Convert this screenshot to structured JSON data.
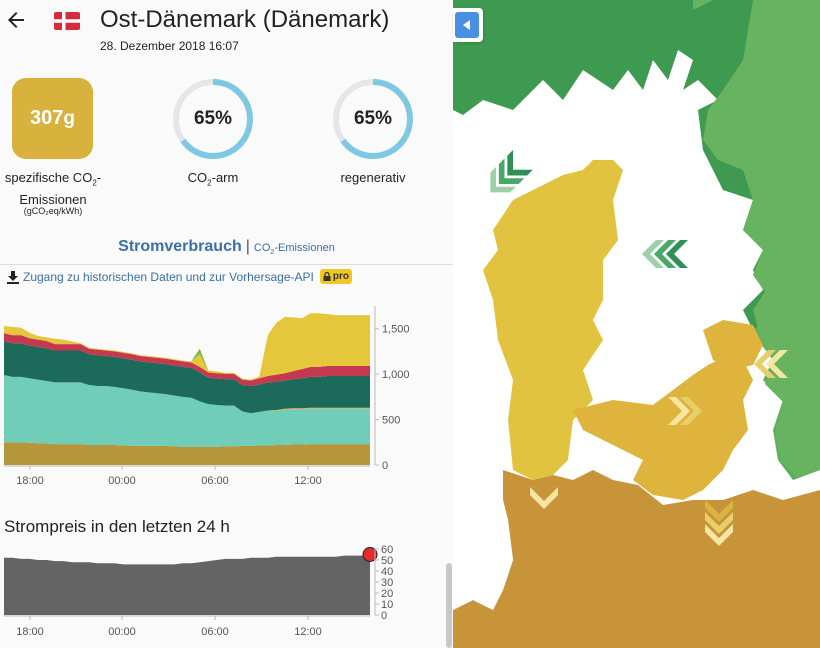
{
  "header": {
    "zone_title": "Ost-Dänemark (Dänemark)",
    "datetime": "28. Dezember 2018 16:07",
    "back_icon": "arrow-left-icon",
    "flag_icon": "denmark-flag-icon"
  },
  "metrics": {
    "co2_intensity": {
      "value": "307",
      "unit": "g",
      "label_line1": "spezifische CO",
      "label_sub": "2",
      "label_line1_end": "-",
      "label_line2": "Emissionen",
      "unit_note": "(gCO₂eq/kWh)",
      "color": "#d8b23c"
    },
    "low_carbon": {
      "value": "65%",
      "percent": 65,
      "label_main": "CO",
      "label_sub": "2",
      "label_end": "-arm",
      "color": "#7ec8e3"
    },
    "renewable": {
      "value": "65%",
      "percent": 65,
      "label": "regenerativ",
      "color": "#7ec8e3"
    }
  },
  "tabs": {
    "active": "Stromverbrauch",
    "separator": "|",
    "inactive_main": "CO",
    "inactive_sub": "2",
    "inactive_end": "-Emissionen"
  },
  "api_link": {
    "icon": "download-icon",
    "text": "Zugang zu historischen Daten und zur Vorhersage-API",
    "badge_icon": "lock-icon",
    "badge": "pro"
  },
  "chart_data": [
    {
      "type": "area",
      "title": "",
      "x_ticks": [
        "18:00",
        "00:00",
        "06:00",
        "12:00"
      ],
      "y_ticks": [
        "0",
        "500",
        "1,000",
        "1,500"
      ],
      "ylim": [
        0,
        1750
      ],
      "stacked": true,
      "series": [
        {
          "color": "#b5973b",
          "values": [
            250,
            250,
            250,
            245,
            240,
            235,
            230,
            230,
            230,
            230,
            220,
            220,
            220,
            220,
            215,
            210,
            210,
            210,
            210,
            210,
            205,
            200,
            200,
            200,
            200,
            200,
            205,
            205,
            210,
            210,
            215,
            215,
            220,
            220,
            225,
            225,
            230,
            230,
            230,
            230,
            230,
            230,
            230,
            230
          ]
        },
        {
          "color": "#6fcdb8",
          "values": [
            740,
            720,
            720,
            710,
            700,
            690,
            680,
            680,
            680,
            680,
            660,
            650,
            650,
            640,
            630,
            620,
            600,
            590,
            580,
            570,
            560,
            550,
            540,
            500,
            470,
            460,
            450,
            450,
            380,
            360,
            370,
            380,
            380,
            390,
            390,
            390,
            390,
            390,
            390,
            390,
            390,
            390,
            390,
            390
          ]
        },
        {
          "color": "#f4a340",
          "values": [
            0,
            0,
            0,
            0,
            0,
            0,
            0,
            0,
            0,
            0,
            0,
            0,
            0,
            0,
            0,
            0,
            0,
            0,
            0,
            0,
            0,
            0,
            0,
            0,
            0,
            0,
            0,
            0,
            0,
            0,
            0,
            5,
            5,
            10,
            10,
            10,
            10,
            10,
            10,
            10,
            10,
            10,
            10,
            10
          ]
        },
        {
          "color": "#1c6b5a",
          "values": [
            370,
            370,
            370,
            360,
            360,
            360,
            350,
            350,
            350,
            350,
            340,
            340,
            330,
            330,
            330,
            330,
            330,
            330,
            330,
            330,
            330,
            330,
            330,
            320,
            290,
            290,
            290,
            290,
            290,
            300,
            300,
            310,
            310,
            310,
            320,
            330,
            340,
            340,
            350,
            350,
            350,
            350,
            350,
            350
          ]
        },
        {
          "color": "#c53850",
          "values": [
            90,
            90,
            90,
            80,
            80,
            80,
            70,
            70,
            70,
            70,
            60,
            60,
            60,
            60,
            60,
            60,
            60,
            60,
            60,
            60,
            60,
            60,
            60,
            60,
            60,
            60,
            60,
            60,
            60,
            60,
            70,
            70,
            80,
            80,
            90,
            100,
            110,
            110,
            110,
            110,
            110,
            110,
            110,
            110
          ]
        },
        {
          "color": "#e4c73a",
          "values": [
            80,
            90,
            80,
            60,
            40,
            40,
            60,
            50,
            30,
            10,
            10,
            10,
            10,
            10,
            10,
            10,
            10,
            10,
            10,
            10,
            10,
            10,
            10,
            140,
            20,
            20,
            10,
            10,
            10,
            10,
            20,
            450,
            570,
            620,
            590,
            560,
            590,
            590,
            570,
            560,
            560,
            560,
            560,
            560
          ]
        },
        {
          "color": "#7ab648",
          "values": [
            0,
            0,
            0,
            0,
            0,
            0,
            0,
            0,
            0,
            0,
            0,
            0,
            0,
            0,
            0,
            0,
            0,
            0,
            0,
            0,
            0,
            0,
            0,
            60,
            0,
            0,
            0,
            0,
            0,
            0,
            0,
            0,
            0,
            0,
            0,
            0,
            0,
            0,
            0,
            0,
            0,
            0,
            0,
            0
          ]
        }
      ]
    },
    {
      "type": "area",
      "title": "Strompreis in den letzten 24 h",
      "x_ticks": [
        "18:00",
        "00:00",
        "06:00",
        "12:00"
      ],
      "y_ticks": [
        "0",
        "10",
        "20",
        "30",
        "40",
        "50",
        "60"
      ],
      "ylim": [
        0,
        60
      ],
      "series": [
        {
          "color": "#646464",
          "values": [
            52,
            52,
            51,
            51,
            50,
            50,
            49,
            49,
            48,
            48,
            48,
            47,
            47,
            47,
            46,
            46,
            46,
            46,
            46,
            46,
            46,
            47,
            47,
            48,
            49,
            50,
            51,
            51,
            51,
            52,
            52,
            52,
            53,
            53,
            53,
            53,
            53,
            53,
            53,
            53,
            54,
            54,
            54,
            55
          ]
        }
      ],
      "current_marker_color": "#e52a2a"
    }
  ]
}
